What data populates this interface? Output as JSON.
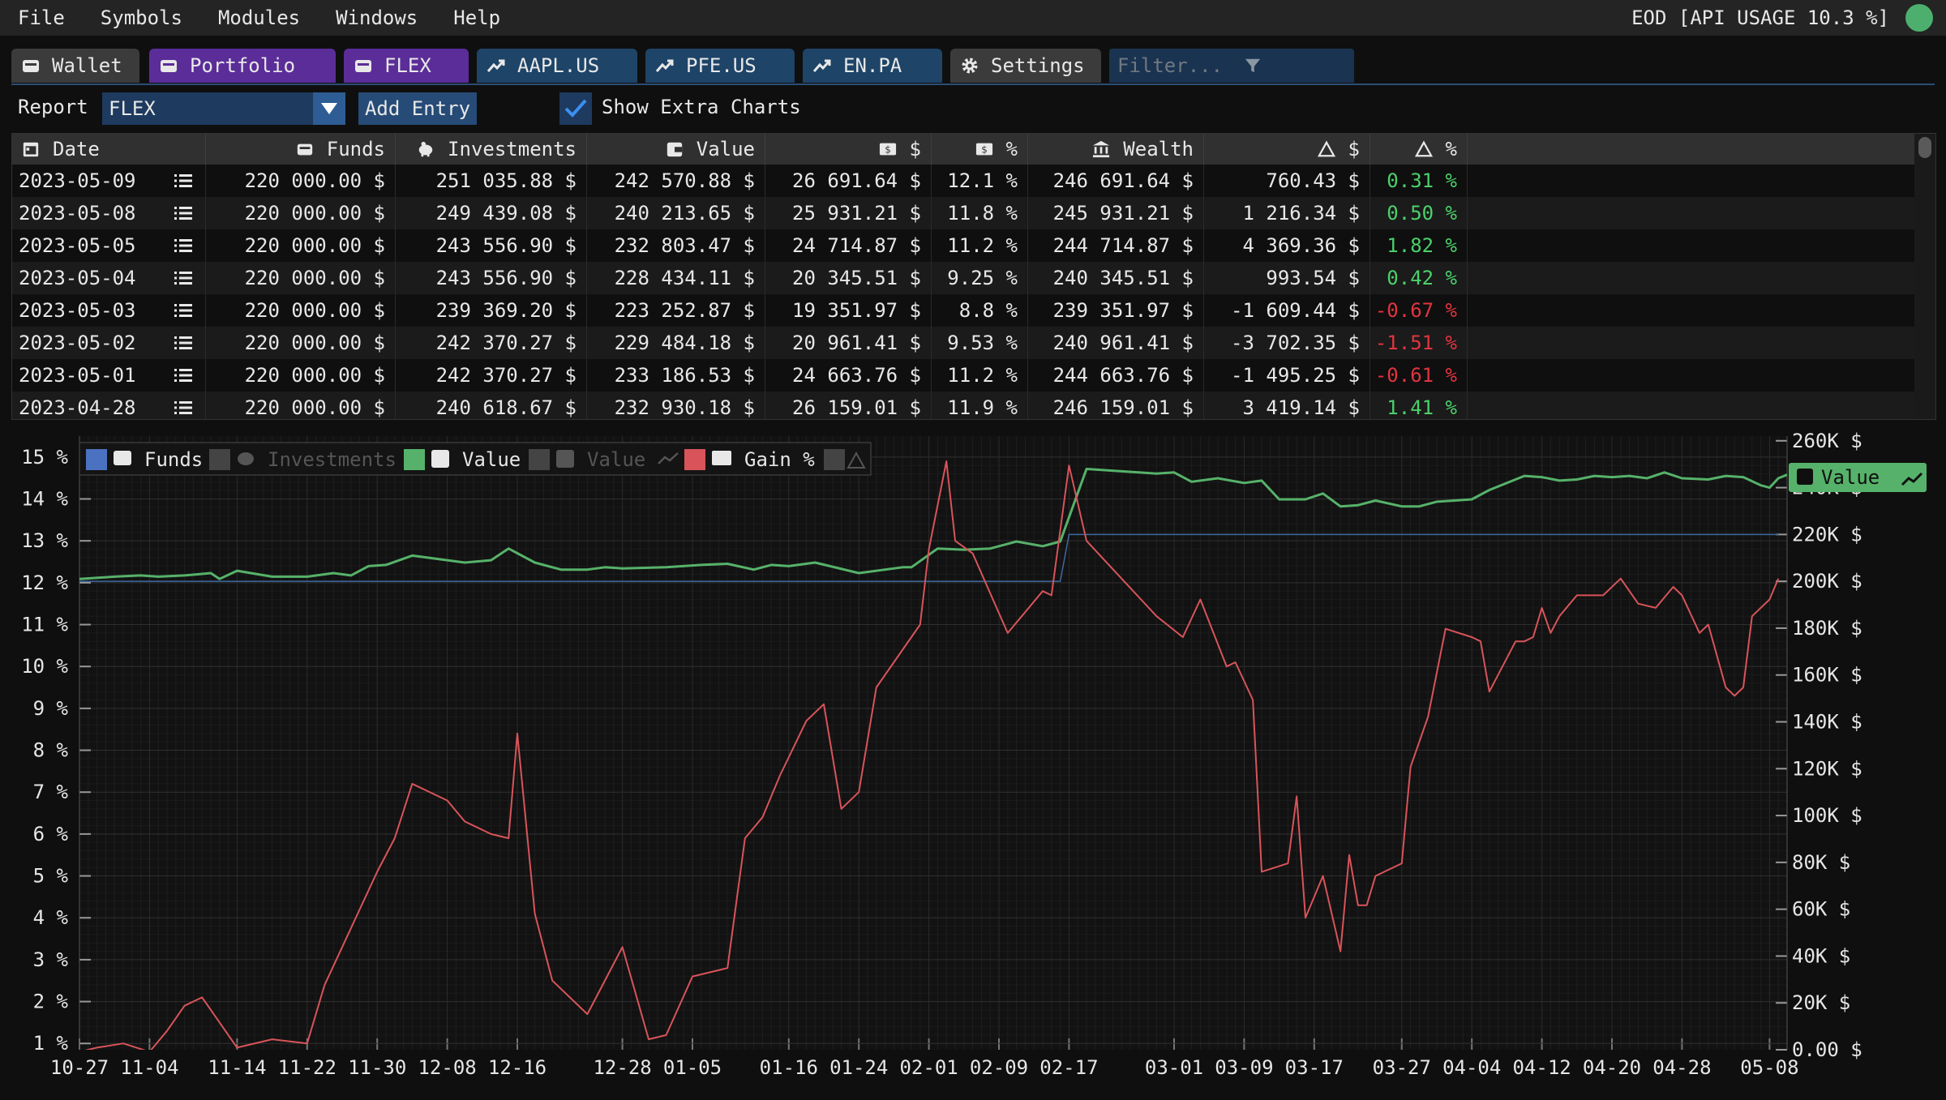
{
  "menu": [
    "File",
    "Symbols",
    "Modules",
    "Windows",
    "Help"
  ],
  "api_usage": "EOD [API USAGE 10.3 %]",
  "colors": {
    "funds": "#4a72c0",
    "value": "#56b26a",
    "gain": "#d8545a",
    "status_ok": "#4caf6e"
  },
  "tabs": [
    {
      "label": "Wallet",
      "icon": "wallet-icon",
      "style": "gray"
    },
    {
      "label": "Portfolio",
      "icon": "wallet-icon",
      "style": "purple"
    },
    {
      "label": "FLEX",
      "icon": "wallet-icon",
      "style": "purple"
    },
    {
      "label": "AAPL.US",
      "icon": "trend-icon",
      "style": "blue"
    },
    {
      "label": "PFE.US",
      "icon": "trend-icon",
      "style": "blue"
    },
    {
      "label": "EN.PA",
      "icon": "trend-icon",
      "style": "blue"
    },
    {
      "label": "Settings",
      "icon": "gear-icon",
      "style": "gray"
    }
  ],
  "filter": {
    "placeholder": "Filter..."
  },
  "toolbar": {
    "report_label": "Report",
    "report_value": "FLEX",
    "add_entry": "Add Entry",
    "show_extra_charts": "Show Extra Charts",
    "show_extra_checked": true
  },
  "table": {
    "columns": [
      "Date",
      "Funds",
      "Investments",
      "Value",
      "$",
      "%",
      "Wealth",
      "$",
      "%"
    ],
    "rows": [
      {
        "date": "2023-05-09",
        "funds": "220 000.00 $",
        "investments": "251 035.88 $",
        "value": "242 570.88 $",
        "gain": "26 691.64 $",
        "gain_pct": "12.1 %",
        "wealth": "246 691.64 $",
        "delta": "760.43 $",
        "delta_pct": "0.31 %",
        "sign": "pos"
      },
      {
        "date": "2023-05-08",
        "funds": "220 000.00 $",
        "investments": "249 439.08 $",
        "value": "240 213.65 $",
        "gain": "25 931.21 $",
        "gain_pct": "11.8 %",
        "wealth": "245 931.21 $",
        "delta": "1 216.34 $",
        "delta_pct": "0.50 %",
        "sign": "pos"
      },
      {
        "date": "2023-05-05",
        "funds": "220 000.00 $",
        "investments": "243 556.90 $",
        "value": "232 803.47 $",
        "gain": "24 714.87 $",
        "gain_pct": "11.2 %",
        "wealth": "244 714.87 $",
        "delta": "4 369.36 $",
        "delta_pct": "1.82 %",
        "sign": "pos"
      },
      {
        "date": "2023-05-04",
        "funds": "220 000.00 $",
        "investments": "243 556.90 $",
        "value": "228 434.11 $",
        "gain": "20 345.51 $",
        "gain_pct": "9.25 %",
        "wealth": "240 345.51 $",
        "delta": "993.54 $",
        "delta_pct": "0.42 %",
        "sign": "pos"
      },
      {
        "date": "2023-05-03",
        "funds": "220 000.00 $",
        "investments": "239 369.20 $",
        "value": "223 252.87 $",
        "gain": "19 351.97 $",
        "gain_pct": "8.8 %",
        "wealth": "239 351.97 $",
        "delta": "-1 609.44 $",
        "delta_pct": "-0.67 %",
        "sign": "neg"
      },
      {
        "date": "2023-05-02",
        "funds": "220 000.00 $",
        "investments": "242 370.27 $",
        "value": "229 484.18 $",
        "gain": "20 961.41 $",
        "gain_pct": "9.53 %",
        "wealth": "240 961.41 $",
        "delta": "-3 702.35 $",
        "delta_pct": "-1.51 %",
        "sign": "neg"
      },
      {
        "date": "2023-05-01",
        "funds": "220 000.00 $",
        "investments": "242 370.27 $",
        "value": "233 186.53 $",
        "gain": "24 663.76 $",
        "gain_pct": "11.2 %",
        "wealth": "244 663.76 $",
        "delta": "-1 495.25 $",
        "delta_pct": "-0.61 %",
        "sign": "neg"
      },
      {
        "date": "2023-04-28",
        "funds": "220 000.00 $",
        "investments": "240 618.67 $",
        "value": "232 930.18 $",
        "gain": "26 159.01 $",
        "gain_pct": "11.9 %",
        "wealth": "246 159.01 $",
        "delta": "3 419.14 $",
        "delta_pct": "1.41 %",
        "sign": "pos"
      }
    ]
  },
  "chart_data": {
    "type": "line",
    "legend": [
      {
        "name": "Funds",
        "enabled": true
      },
      {
        "name": "Investments",
        "enabled": false
      },
      {
        "name": "Value",
        "enabled": true
      },
      {
        "name": "Value",
        "enabled": false
      },
      {
        "name": "Gain %",
        "enabled": true
      }
    ],
    "value_tag": "Value",
    "x_ticks": [
      "10-27",
      "11-04",
      "11-14",
      "11-22",
      "11-30",
      "12-08",
      "12-16",
      "12-28",
      "01-05",
      "01-16",
      "01-24",
      "02-01",
      "02-09",
      "02-17",
      "03-01",
      "03-09",
      "03-17",
      "03-27",
      "04-04",
      "04-12",
      "04-20",
      "04-28",
      "05-08"
    ],
    "y_left_ticks": [
      "1 %",
      "2 %",
      "3 %",
      "4 %",
      "5 %",
      "6 %",
      "7 %",
      "8 %",
      "9 %",
      "10 %",
      "11 %",
      "12 %",
      "13 %",
      "14 %",
      "15 %"
    ],
    "y_right_ticks": [
      "0.00 $",
      "20K $",
      "40K $",
      "60K $",
      "80K $",
      "100K $",
      "120K $",
      "140K $",
      "160K $",
      "180K $",
      "200K $",
      "220K $",
      "240K $",
      "260K $"
    ],
    "y_left_range": [
      0.85,
      15.5
    ],
    "y_right_range": [
      0,
      262000
    ],
    "x_range": [
      "2022-10-27",
      "2023-05-10"
    ],
    "grid": true,
    "legend_position": "top-left",
    "series": [
      {
        "name": "Funds",
        "axis": "right",
        "points": [
          [
            "2022-10-27",
            200000
          ],
          [
            "2023-02-16",
            200000
          ],
          [
            "2023-02-17",
            220000
          ],
          [
            "2023-05-09",
            220000
          ]
        ]
      },
      {
        "name": "Value",
        "axis": "right",
        "points": [
          [
            "2022-10-27",
            201000
          ],
          [
            "2022-10-31",
            202000
          ],
          [
            "2022-11-03",
            202500
          ],
          [
            "2022-11-05",
            202000
          ],
          [
            "2022-11-08",
            202500
          ],
          [
            "2022-11-11",
            203500
          ],
          [
            "2022-11-12",
            201000
          ],
          [
            "2022-11-14",
            204500
          ],
          [
            "2022-11-18",
            202000
          ],
          [
            "2022-11-22",
            202000
          ],
          [
            "2022-11-25",
            203500
          ],
          [
            "2022-11-27",
            202500
          ],
          [
            "2022-11-29",
            206500
          ],
          [
            "2022-12-01",
            207000
          ],
          [
            "2022-12-04",
            211000
          ],
          [
            "2022-12-08",
            209000
          ],
          [
            "2022-12-10",
            208000
          ],
          [
            "2022-12-13",
            209000
          ],
          [
            "2022-12-15",
            214000
          ],
          [
            "2022-12-18",
            208000
          ],
          [
            "2022-12-21",
            205000
          ],
          [
            "2022-12-24",
            205000
          ],
          [
            "2022-12-26",
            206000
          ],
          [
            "2022-12-28",
            205500
          ],
          [
            "2023-01-02",
            206000
          ],
          [
            "2023-01-06",
            207000
          ],
          [
            "2023-01-09",
            207500
          ],
          [
            "2023-01-12",
            205000
          ],
          [
            "2023-01-14",
            207000
          ],
          [
            "2023-01-16",
            206500
          ],
          [
            "2023-01-19",
            208000
          ],
          [
            "2023-01-24",
            203500
          ],
          [
            "2023-01-29",
            206000
          ],
          [
            "2023-01-30",
            206000
          ],
          [
            "2023-02-02",
            214000
          ],
          [
            "2023-02-05",
            213500
          ],
          [
            "2023-02-08",
            214000
          ],
          [
            "2023-02-10",
            216000
          ],
          [
            "2023-02-11",
            217000
          ],
          [
            "2023-02-14",
            215000
          ],
          [
            "2023-02-16",
            217000
          ],
          [
            "2023-02-19",
            248000
          ],
          [
            "2023-02-27",
            246000
          ],
          [
            "2023-03-01",
            246500
          ],
          [
            "2023-03-03",
            242500
          ],
          [
            "2023-03-06",
            244000
          ],
          [
            "2023-03-09",
            242000
          ],
          [
            "2023-03-11",
            243000
          ],
          [
            "2023-03-13",
            235000
          ],
          [
            "2023-03-16",
            235000
          ],
          [
            "2023-03-18",
            237500
          ],
          [
            "2023-03-20",
            232000
          ],
          [
            "2023-03-22",
            232500
          ],
          [
            "2023-03-24",
            234500
          ],
          [
            "2023-03-27",
            232000
          ],
          [
            "2023-03-29",
            232000
          ],
          [
            "2023-03-31",
            234000
          ],
          [
            "2023-04-02",
            234500
          ],
          [
            "2023-04-04",
            235000
          ],
          [
            "2023-04-06",
            239000
          ],
          [
            "2023-04-10",
            245000
          ],
          [
            "2023-04-12",
            244500
          ],
          [
            "2023-04-14",
            243000
          ],
          [
            "2023-04-16",
            243500
          ],
          [
            "2023-04-18",
            245000
          ],
          [
            "2023-04-20",
            244500
          ],
          [
            "2023-04-22",
            245000
          ],
          [
            "2023-04-24",
            244000
          ],
          [
            "2023-04-26",
            246500
          ],
          [
            "2023-04-28",
            244000
          ],
          [
            "2023-05-01",
            243500
          ],
          [
            "2023-05-03",
            245000
          ],
          [
            "2023-05-05",
            244500
          ],
          [
            "2023-05-07",
            241000
          ],
          [
            "2023-05-08",
            240000
          ],
          [
            "2023-05-09",
            244000
          ],
          [
            "2023-05-10",
            245500
          ]
        ]
      },
      {
        "name": "Gain %",
        "axis": "left",
        "points": [
          [
            "2022-10-27",
            0.8
          ],
          [
            "2022-10-29",
            0.9
          ],
          [
            "2022-11-01",
            1.0
          ],
          [
            "2022-11-04",
            0.8
          ],
          [
            "2022-11-06",
            1.3
          ],
          [
            "2022-11-08",
            1.9
          ],
          [
            "2022-11-10",
            2.1
          ],
          [
            "2022-11-14",
            0.9
          ],
          [
            "2022-11-18",
            1.1
          ],
          [
            "2022-11-22",
            1.0
          ],
          [
            "2022-11-24",
            2.4
          ],
          [
            "2022-11-26",
            3.3
          ],
          [
            "2022-11-30",
            5.1
          ],
          [
            "2022-12-02",
            5.9
          ],
          [
            "2022-12-04",
            7.2
          ],
          [
            "2022-12-08",
            6.8
          ],
          [
            "2022-12-10",
            6.3
          ],
          [
            "2022-12-13",
            6.0
          ],
          [
            "2022-12-15",
            5.9
          ],
          [
            "2022-12-16",
            8.4
          ],
          [
            "2022-12-18",
            4.1
          ],
          [
            "2022-12-20",
            2.5
          ],
          [
            "2022-12-24",
            1.7
          ],
          [
            "2022-12-28",
            3.3
          ],
          [
            "2022-12-31",
            1.1
          ],
          [
            "2023-01-02",
            1.2
          ],
          [
            "2023-01-05",
            2.6
          ],
          [
            "2023-01-09",
            2.8
          ],
          [
            "2023-01-11",
            5.9
          ],
          [
            "2023-01-13",
            6.4
          ],
          [
            "2023-01-15",
            7.4
          ],
          [
            "2023-01-18",
            8.7
          ],
          [
            "2023-01-20",
            9.1
          ],
          [
            "2023-01-22",
            6.6
          ],
          [
            "2023-01-24",
            7.0
          ],
          [
            "2023-01-26",
            9.5
          ],
          [
            "2023-01-31",
            11.0
          ],
          [
            "2023-02-01",
            12.8
          ],
          [
            "2023-02-03",
            14.9
          ],
          [
            "2023-02-04",
            13.0
          ],
          [
            "2023-02-06",
            12.7
          ],
          [
            "2023-02-10",
            10.8
          ],
          [
            "2023-02-14",
            11.8
          ],
          [
            "2023-02-15",
            11.7
          ],
          [
            "2023-02-17",
            14.8
          ],
          [
            "2023-02-19",
            13.0
          ],
          [
            "2023-02-27",
            11.2
          ],
          [
            "2023-03-02",
            10.7
          ],
          [
            "2023-03-04",
            11.6
          ],
          [
            "2023-03-07",
            10.0
          ],
          [
            "2023-03-08",
            10.1
          ],
          [
            "2023-03-10",
            9.2
          ],
          [
            "2023-03-11",
            5.1
          ],
          [
            "2023-03-14",
            5.3
          ],
          [
            "2023-03-15",
            6.9
          ],
          [
            "2023-03-16",
            4.0
          ],
          [
            "2023-03-18",
            5.0
          ],
          [
            "2023-03-20",
            3.2
          ],
          [
            "2023-03-21",
            5.5
          ],
          [
            "2023-03-22",
            4.3
          ],
          [
            "2023-03-23",
            4.3
          ],
          [
            "2023-03-24",
            5.0
          ],
          [
            "2023-03-27",
            5.3
          ],
          [
            "2023-03-28",
            7.6
          ],
          [
            "2023-03-30",
            8.8
          ],
          [
            "2023-04-01",
            10.9
          ],
          [
            "2023-04-04",
            10.7
          ],
          [
            "2023-04-05",
            10.6
          ],
          [
            "2023-04-06",
            9.4
          ],
          [
            "2023-04-09",
            10.6
          ],
          [
            "2023-04-10",
            10.6
          ],
          [
            "2023-04-11",
            10.7
          ],
          [
            "2023-04-12",
            11.4
          ],
          [
            "2023-04-13",
            10.8
          ],
          [
            "2023-04-14",
            11.2
          ],
          [
            "2023-04-16",
            11.7
          ],
          [
            "2023-04-19",
            11.7
          ],
          [
            "2023-04-21",
            12.1
          ],
          [
            "2023-04-23",
            11.5
          ],
          [
            "2023-04-25",
            11.4
          ],
          [
            "2023-04-27",
            11.9
          ],
          [
            "2023-04-28",
            11.7
          ],
          [
            "2023-04-30",
            10.8
          ],
          [
            "2023-05-01",
            11.0
          ],
          [
            "2023-05-03",
            9.5
          ],
          [
            "2023-05-04",
            9.3
          ],
          [
            "2023-05-05",
            9.5
          ],
          [
            "2023-05-06",
            11.2
          ],
          [
            "2023-05-08",
            11.6
          ],
          [
            "2023-05-09",
            12.1
          ]
        ]
      }
    ]
  }
}
